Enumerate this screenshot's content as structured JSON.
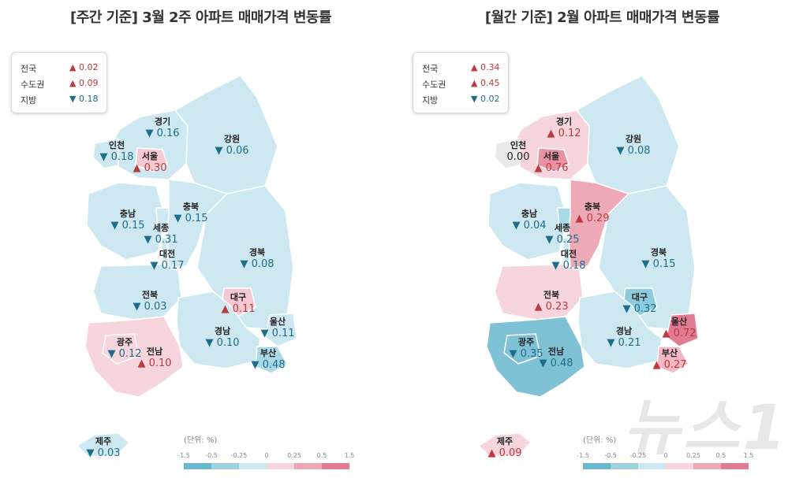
{
  "left": {
    "title": "[주간 기준] 3월 2주 아파트 매매가격 변동률",
    "summary": [
      {
        "name": "전국",
        "dir": "up",
        "value": "0.02"
      },
      {
        "name": "수도권",
        "dir": "up",
        "value": "0.09"
      },
      {
        "name": "지방",
        "dir": "down",
        "value": "0.18"
      }
    ],
    "regions": {
      "gyeonggi": {
        "name": "경기",
        "dir": "down",
        "value": "0.16",
        "color": "#cde8f0"
      },
      "incheon": {
        "name": "인천",
        "dir": "down",
        "value": "0.18",
        "color": "#cde8f0"
      },
      "seoul": {
        "name": "서울",
        "dir": "up",
        "value": "0.30",
        "color": "#f6c8d0"
      },
      "gangwon": {
        "name": "강원",
        "dir": "down",
        "value": "0.06",
        "color": "#cde8f0"
      },
      "chungbuk": {
        "name": "충북",
        "dir": "down",
        "value": "0.15",
        "color": "#cde8f0"
      },
      "chungnam": {
        "name": "충남",
        "dir": "down",
        "value": "0.15",
        "color": "#cde8f0"
      },
      "sejong": {
        "name": "세종",
        "dir": "down",
        "value": "0.31",
        "color": "#cde8f0"
      },
      "daejeon": {
        "name": "대전",
        "dir": "down",
        "value": "0.17",
        "color": "#cde8f0"
      },
      "gyeongbuk": {
        "name": "경북",
        "dir": "down",
        "value": "0.08",
        "color": "#cde8f0"
      },
      "jeonbuk": {
        "name": "전북",
        "dir": "down",
        "value": "0.03",
        "color": "#cde8f0"
      },
      "daegu": {
        "name": "대구",
        "dir": "up",
        "value": "0.11",
        "color": "#f6c8d0"
      },
      "gwangju": {
        "name": "광주",
        "dir": "down",
        "value": "0.12",
        "color": "#f6d5dc"
      },
      "jeonnam": {
        "name": "전남",
        "dir": "up",
        "value": "0.10",
        "color": "#f6d5dc"
      },
      "gyeongnam": {
        "name": "경남",
        "dir": "down",
        "value": "0.10",
        "color": "#cde8f0"
      },
      "ulsan": {
        "name": "울산",
        "dir": "down",
        "value": "0.11",
        "color": "#cde8f0"
      },
      "busan": {
        "name": "부산",
        "dir": "down",
        "value": "0.48",
        "color": "#a9d8e6"
      },
      "jeju": {
        "name": "제주",
        "dir": "down",
        "value": "0.03",
        "color": "#cde8f0"
      }
    },
    "legend": {
      "unit": "(단위: %)",
      "ticks": [
        "-1.5",
        "-0.5",
        "-0.25",
        "0",
        "0.25",
        "0.5",
        "1.5"
      ]
    }
  },
  "right": {
    "title": "[월간 기준] 2월 아파트 매매가격 변동률",
    "summary": [
      {
        "name": "전국",
        "dir": "up",
        "value": "0.34"
      },
      {
        "name": "수도권",
        "dir": "up",
        "value": "0.45"
      },
      {
        "name": "지방",
        "dir": "down",
        "value": "0.02"
      }
    ],
    "regions": {
      "gyeonggi": {
        "name": "경기",
        "dir": "up",
        "value": "0.12",
        "color": "#f6d5dc"
      },
      "incheon": {
        "name": "인천",
        "dir": "none",
        "value": "0.00",
        "color": "#e9e9e9"
      },
      "seoul": {
        "name": "서울",
        "dir": "up",
        "value": "0.76",
        "color": "#e992a3"
      },
      "gangwon": {
        "name": "강원",
        "dir": "down",
        "value": "0.08",
        "color": "#cde8f0"
      },
      "chungbuk": {
        "name": "충북",
        "dir": "up",
        "value": "0.29",
        "color": "#eea9b6"
      },
      "chungnam": {
        "name": "충남",
        "dir": "down",
        "value": "0.04",
        "color": "#cde8f0"
      },
      "sejong": {
        "name": "세종",
        "dir": "down",
        "value": "0.25",
        "color": "#a9d8e6"
      },
      "daejeon": {
        "name": "대전",
        "dir": "down",
        "value": "0.18",
        "color": "#cde8f0"
      },
      "gyeongbuk": {
        "name": "경북",
        "dir": "down",
        "value": "0.15",
        "color": "#cde8f0"
      },
      "jeonbuk": {
        "name": "전북",
        "dir": "up",
        "value": "0.23",
        "color": "#f6d5dc"
      },
      "daegu": {
        "name": "대구",
        "dir": "down",
        "value": "0.32",
        "color": "#8ccbdd"
      },
      "gwangju": {
        "name": "광주",
        "dir": "down",
        "value": "0.35",
        "color": "#7fc2d6"
      },
      "jeonnam": {
        "name": "전남",
        "dir": "down",
        "value": "0.48",
        "color": "#7fc2d6"
      },
      "gyeongnam": {
        "name": "경남",
        "dir": "down",
        "value": "0.21",
        "color": "#cde8f0"
      },
      "ulsan": {
        "name": "울산",
        "dir": "up",
        "value": "0.72",
        "color": "#e07b90"
      },
      "busan": {
        "name": "부산",
        "dir": "up",
        "value": "0.27",
        "color": "#f2b8c3"
      },
      "jeju": {
        "name": "제주",
        "dir": "up",
        "value": "0.09",
        "color": "#f6d5dc"
      }
    },
    "legend": {
      "unit": "(단위: %)",
      "ticks": [
        "-1.5",
        "-0.5",
        "-0.25",
        "0",
        "0.25",
        "0.5",
        "1.5"
      ]
    }
  },
  "legend_colors": [
    "#6db7cc",
    "#9fd3e2",
    "#cde8f0",
    "#f6d5dc",
    "#eea9b6",
    "#e07b90"
  ],
  "watermark": "뉴스1"
}
